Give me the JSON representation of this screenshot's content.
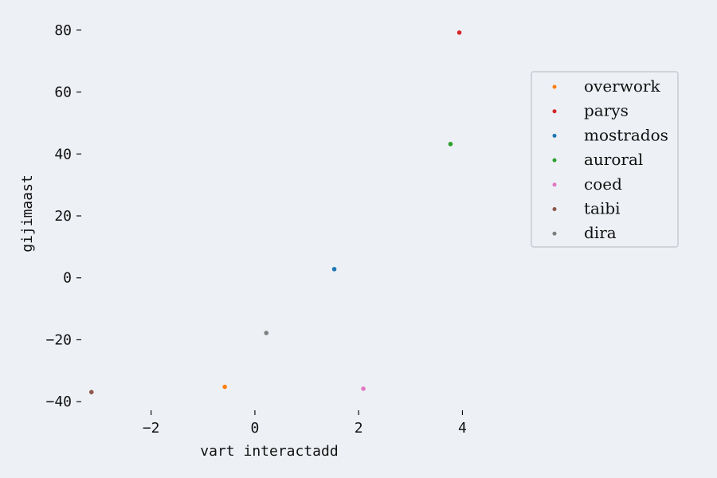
{
  "chart_data": {
    "type": "scatter",
    "xlabel": "vart interactadd",
    "ylabel": "gijimaast",
    "xlim": [
      -3.3,
      4.3
    ],
    "ylim": [
      -42,
      82
    ],
    "xticks": [
      -2,
      0,
      2,
      4
    ],
    "xtick_labels": [
      "−2",
      "0",
      "2",
      "4"
    ],
    "yticks": [
      80,
      60,
      40,
      20,
      0,
      -20,
      -40
    ],
    "ytick_labels": [
      "80",
      "60",
      "40",
      "20",
      "0",
      "−20",
      "−40"
    ],
    "grid": false,
    "legend_position": "upper-right",
    "series": [
      {
        "name": "overwork",
        "color": "#ff7f0e",
        "x": [
          -0.58
        ],
        "y": [
          -35.2
        ]
      },
      {
        "name": "parys",
        "color": "#d62728",
        "x": [
          3.94
        ],
        "y": [
          79.2
        ]
      },
      {
        "name": "mostrados",
        "color": "#1f77b4",
        "x": [
          1.53
        ],
        "y": [
          2.8
        ]
      },
      {
        "name": "auroral",
        "color": "#2ca02c",
        "x": [
          3.77
        ],
        "y": [
          43.2
        ]
      },
      {
        "name": "coed",
        "color": "#e377c2",
        "x": [
          2.09
        ],
        "y": [
          -35.8
        ]
      },
      {
        "name": "taibi",
        "color": "#8c564b",
        "x": [
          -3.15
        ],
        "y": [
          -36.9
        ]
      },
      {
        "name": "dira",
        "color": "#7f7f7f",
        "x": [
          0.22
        ],
        "y": [
          -17.8
        ]
      }
    ]
  }
}
